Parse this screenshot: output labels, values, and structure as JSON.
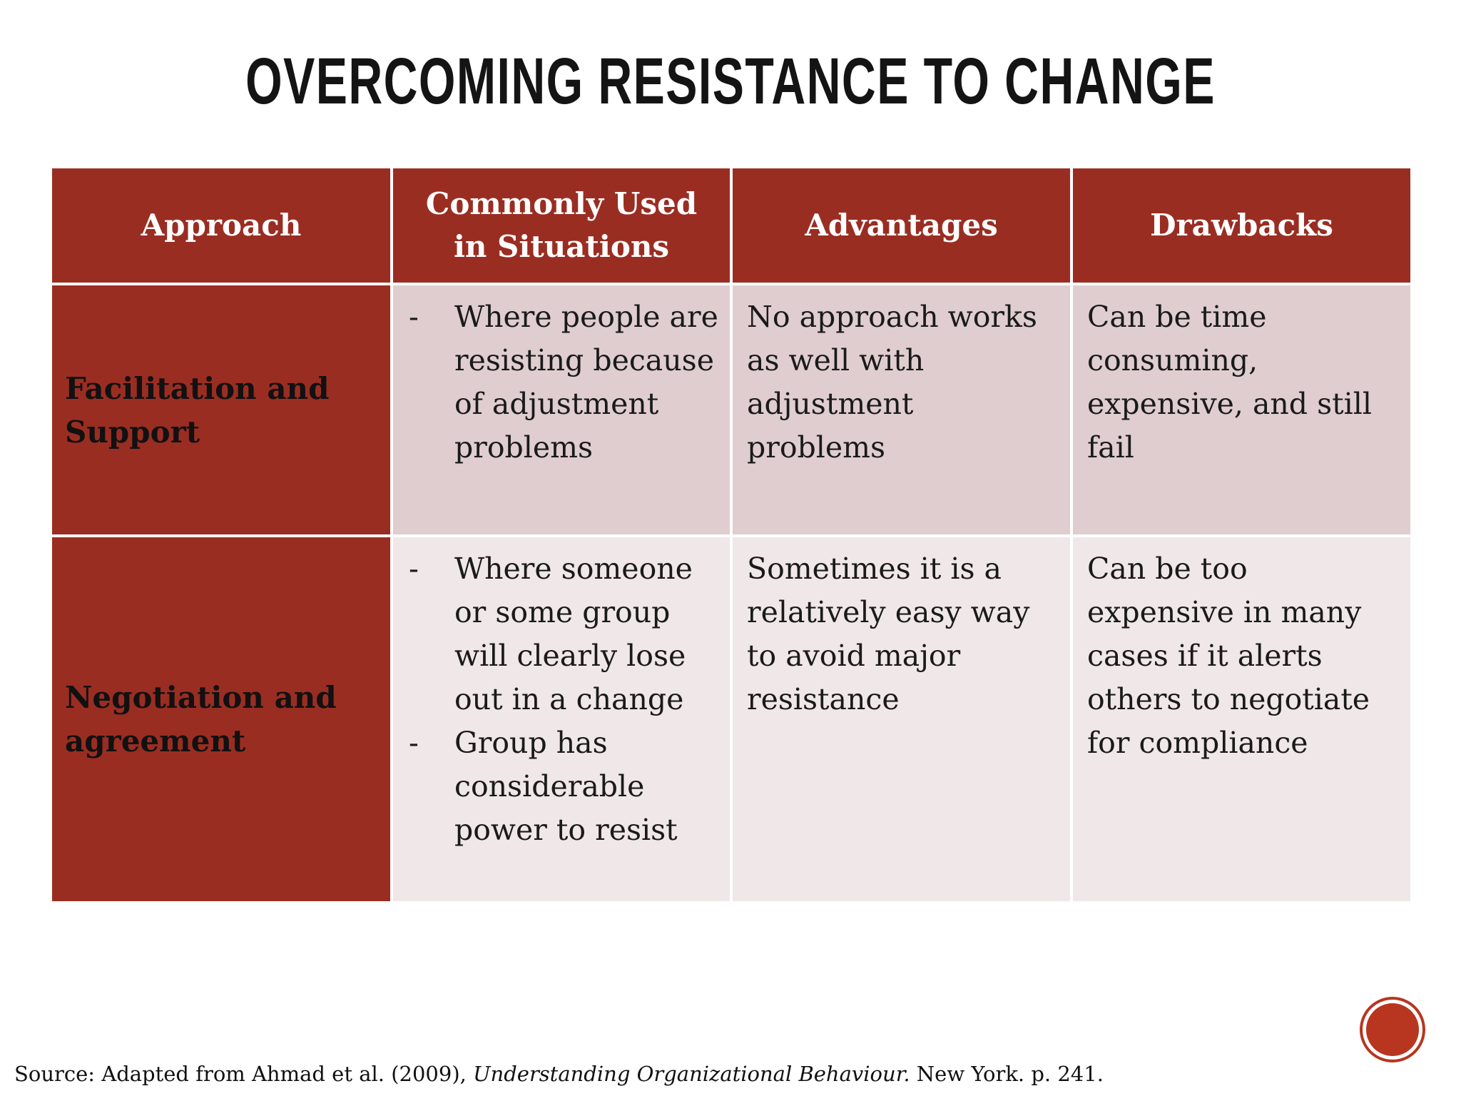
{
  "title": "OVERCOMING RESISTANCE TO CHANGE",
  "table": {
    "header": [
      "Approach",
      "Commonly Used in Situations",
      "Advantages",
      "Drawbacks"
    ],
    "rows": [
      {
        "approach": "Facilitation and Support",
        "situations": [
          "Where people are resisting because of adjustment problems"
        ],
        "advantages": "No approach works as well with adjustment problems",
        "drawbacks": "Can be time consuming, expensive, and still fail"
      },
      {
        "approach": "Negotiation and agreement",
        "situations": [
          "Where someone or some group will clearly lose out in a change",
          "Group has considerable power to resist"
        ],
        "advantages": "Sometimes it is a relatively easy way to avoid major resistance",
        "drawbacks": "Can be too expensive in many cases if it alerts others to negotiate for compliance"
      }
    ]
  },
  "source": {
    "prefix": "Source: Adapted from Ahmad et al. (2009), ",
    "work": "Understanding Organizational Behaviour.",
    "suffix": " New York. p. 241."
  }
}
